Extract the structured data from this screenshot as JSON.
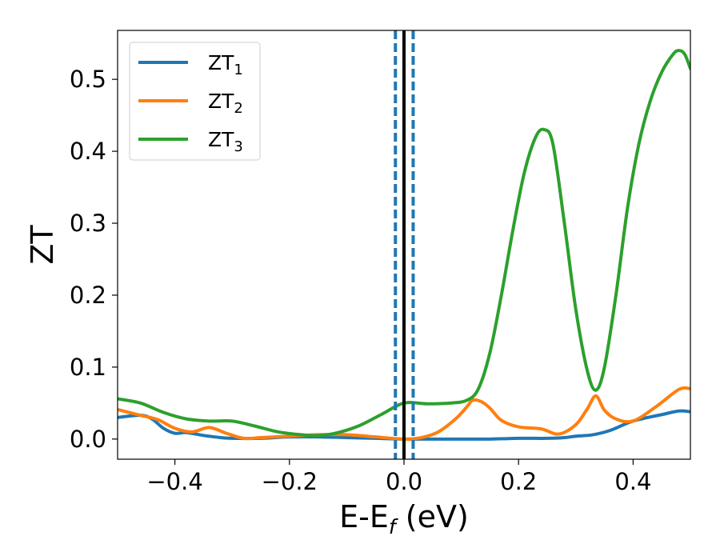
{
  "chart_data": {
    "type": "line",
    "title": "",
    "xlabel": {
      "base": "E-E",
      "sub": "f",
      "suffix": " (eV)"
    },
    "ylabel": "ZT",
    "xlim": [
      -0.5,
      0.5
    ],
    "ylim": [
      -0.028,
      0.568
    ],
    "xticks": [
      -0.4,
      -0.2,
      0.0,
      0.2,
      0.4
    ],
    "xtick_labels": [
      "−0.4",
      "−0.2",
      "0.0",
      "0.2",
      "0.4"
    ],
    "yticks": [
      0.0,
      0.1,
      0.2,
      0.3,
      0.4,
      0.5
    ],
    "ytick_labels": [
      "0.0",
      "0.1",
      "0.2",
      "0.3",
      "0.4",
      "0.5"
    ],
    "grid": false,
    "legend": {
      "placement": "top-left"
    },
    "vlines": [
      {
        "x": -0.015,
        "style": "dashed",
        "color": "#1f77b4"
      },
      {
        "x": 0.0,
        "style": "solid",
        "color": "#000000"
      },
      {
        "x": 0.016,
        "style": "dashed",
        "color": "#1f77b4"
      }
    ],
    "series": [
      {
        "name": "ZT",
        "name_sub": "1",
        "color": "#1f77b4",
        "x": [
          -0.5,
          -0.46,
          -0.44,
          -0.42,
          -0.4,
          -0.38,
          -0.35,
          -0.32,
          -0.3,
          -0.25,
          -0.2,
          -0.15,
          -0.1,
          -0.05,
          0.0,
          0.05,
          0.1,
          0.15,
          0.2,
          0.25,
          0.28,
          0.3,
          0.33,
          0.36,
          0.4,
          0.45,
          0.48,
          0.5
        ],
        "y": [
          0.03,
          0.033,
          0.028,
          0.015,
          0.008,
          0.009,
          0.005,
          0.002,
          0.001,
          0.001,
          0.003,
          0.003,
          0.002,
          0.001,
          0.0,
          0.0,
          0.0,
          0.0,
          0.001,
          0.001,
          0.002,
          0.004,
          0.006,
          0.012,
          0.025,
          0.034,
          0.039,
          0.038
        ]
      },
      {
        "name": "ZT",
        "name_sub": "2",
        "color": "#ff7f0e",
        "x": [
          -0.5,
          -0.46,
          -0.43,
          -0.4,
          -0.37,
          -0.34,
          -0.31,
          -0.28,
          -0.25,
          -0.2,
          -0.15,
          -0.1,
          -0.05,
          0.0,
          0.03,
          0.06,
          0.09,
          0.11,
          0.12,
          0.135,
          0.15,
          0.17,
          0.2,
          0.24,
          0.27,
          0.3,
          0.32,
          0.335,
          0.35,
          0.37,
          0.4,
          0.44,
          0.48,
          0.5
        ],
        "y": [
          0.041,
          0.033,
          0.027,
          0.015,
          0.01,
          0.016,
          0.008,
          0.001,
          0.002,
          0.004,
          0.006,
          0.006,
          0.003,
          0.0,
          0.002,
          0.01,
          0.028,
          0.045,
          0.054,
          0.052,
          0.043,
          0.026,
          0.017,
          0.014,
          0.007,
          0.02,
          0.042,
          0.06,
          0.04,
          0.028,
          0.025,
          0.045,
          0.069,
          0.07
        ]
      },
      {
        "name": "ZT",
        "name_sub": "3",
        "color": "#2ca02c",
        "x": [
          -0.5,
          -0.46,
          -0.42,
          -0.38,
          -0.34,
          -0.3,
          -0.26,
          -0.22,
          -0.18,
          -0.15,
          -0.12,
          -0.08,
          -0.04,
          0.0,
          0.04,
          0.08,
          0.11,
          0.13,
          0.15,
          0.17,
          0.19,
          0.21,
          0.23,
          0.245,
          0.26,
          0.28,
          0.3,
          0.32,
          0.335,
          0.35,
          0.37,
          0.39,
          0.41,
          0.43,
          0.45,
          0.47,
          0.48,
          0.49,
          0.5
        ],
        "y": [
          0.056,
          0.05,
          0.037,
          0.028,
          0.025,
          0.025,
          0.018,
          0.01,
          0.006,
          0.005,
          0.008,
          0.018,
          0.034,
          0.05,
          0.049,
          0.05,
          0.054,
          0.07,
          0.12,
          0.2,
          0.29,
          0.37,
          0.42,
          0.43,
          0.41,
          0.3,
          0.18,
          0.095,
          0.068,
          0.1,
          0.2,
          0.32,
          0.41,
          0.47,
          0.51,
          0.535,
          0.54,
          0.535,
          0.515
        ]
      }
    ]
  }
}
